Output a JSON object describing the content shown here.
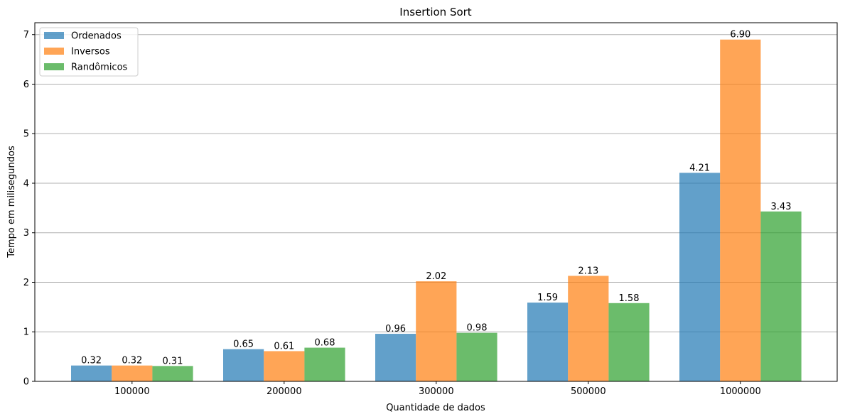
{
  "chart_data": {
    "type": "bar",
    "title": "Insertion Sort",
    "xlabel": "Quantidade de dados",
    "ylabel": "Tempo em milisegundos",
    "categories": [
      "100000",
      "200000",
      "300000",
      "500000",
      "1000000"
    ],
    "series": [
      {
        "name": "Ordenados",
        "color": "#1f77b4",
        "values": [
          0.32,
          0.65,
          0.96,
          1.59,
          4.21
        ],
        "labels": [
          "0.32",
          "0.65",
          "0.96",
          "1.59",
          "4.21"
        ]
      },
      {
        "name": "Inversos",
        "color": "#ff7f0e",
        "values": [
          0.32,
          0.61,
          2.02,
          2.13,
          6.9
        ],
        "labels": [
          "0.32",
          "0.61",
          "2.02",
          "2.13",
          "6.90"
        ]
      },
      {
        "name": "Randômicos",
        "color": "#2ca02c",
        "values": [
          0.31,
          0.68,
          0.98,
          1.58,
          3.43
        ],
        "labels": [
          "0.31",
          "0.68",
          "0.98",
          "1.58",
          "3.43"
        ]
      }
    ],
    "ylim": [
      0,
      7.24
    ],
    "yticks": [
      "0",
      "1",
      "2",
      "3",
      "4",
      "5",
      "6",
      "7"
    ],
    "grid": "y",
    "legend_position": "top-left",
    "bar_opacity": 0.7
  }
}
